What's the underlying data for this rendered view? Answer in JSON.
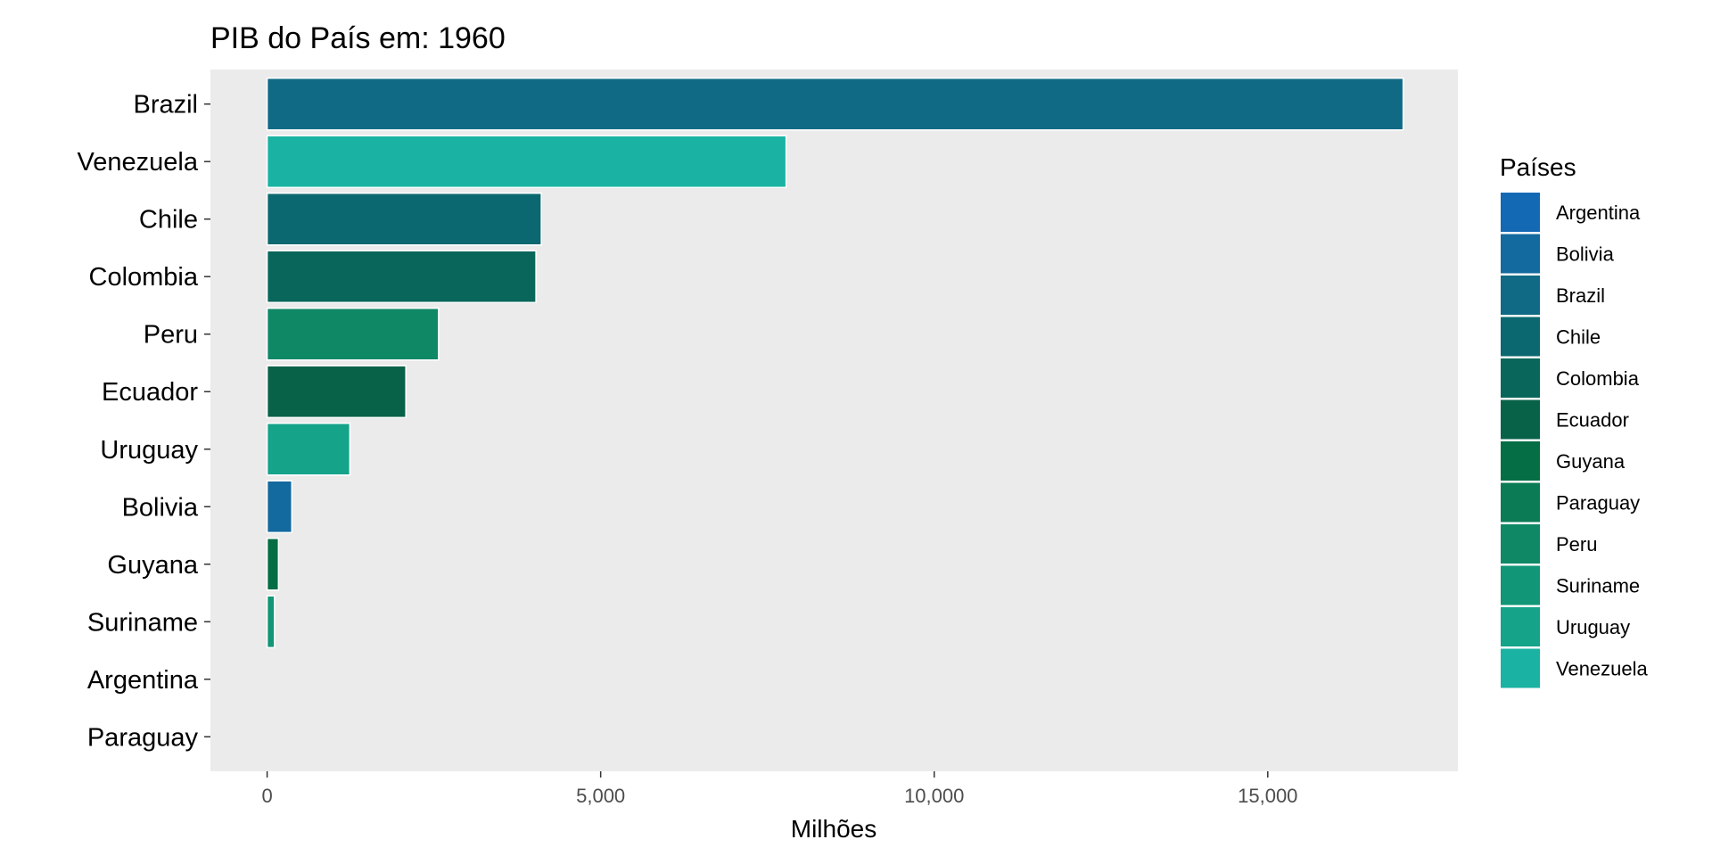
{
  "chart_data": {
    "type": "bar",
    "orientation": "horizontal",
    "title": "PIB do País em: 1960",
    "xlabel": "Milhões",
    "ylabel": "",
    "xlim": [
      -850,
      17850
    ],
    "x_ticks": [
      0,
      5000,
      10000,
      15000
    ],
    "x_tick_labels": [
      "0",
      "5,000",
      "10,000",
      "15,000"
    ],
    "categories": [
      "Brazil",
      "Venezuela",
      "Chile",
      "Colombia",
      "Peru",
      "Ecuador",
      "Uruguay",
      "Bolivia",
      "Guyana",
      "Suriname",
      "Argentina",
      "Paraguay"
    ],
    "values": [
      17030,
      7780,
      4110,
      4030,
      2570,
      2080,
      1240,
      370,
      170,
      110,
      null,
      null
    ],
    "panel_background": "#ebebeb",
    "grid": false,
    "legend_position": "right",
    "legend": {
      "title": "Países",
      "items": [
        {
          "label": "Argentina",
          "color": "#1469b4"
        },
        {
          "label": "Bolivia",
          "color": "#136a9e"
        },
        {
          "label": "Brazil",
          "color": "#106a85"
        },
        {
          "label": "Chile",
          "color": "#0c6870"
        },
        {
          "label": "Colombia",
          "color": "#09665a"
        },
        {
          "label": "Ecuador",
          "color": "#086247"
        },
        {
          "label": "Guyana",
          "color": "#056e45"
        },
        {
          "label": "Paraguay",
          "color": "#0b7b55"
        },
        {
          "label": "Peru",
          "color": "#0f8866"
        },
        {
          "label": "Suriname",
          "color": "#119677"
        },
        {
          "label": "Uruguay",
          "color": "#15a38a"
        },
        {
          "label": "Venezuela",
          "color": "#1ab3a3"
        }
      ]
    }
  }
}
